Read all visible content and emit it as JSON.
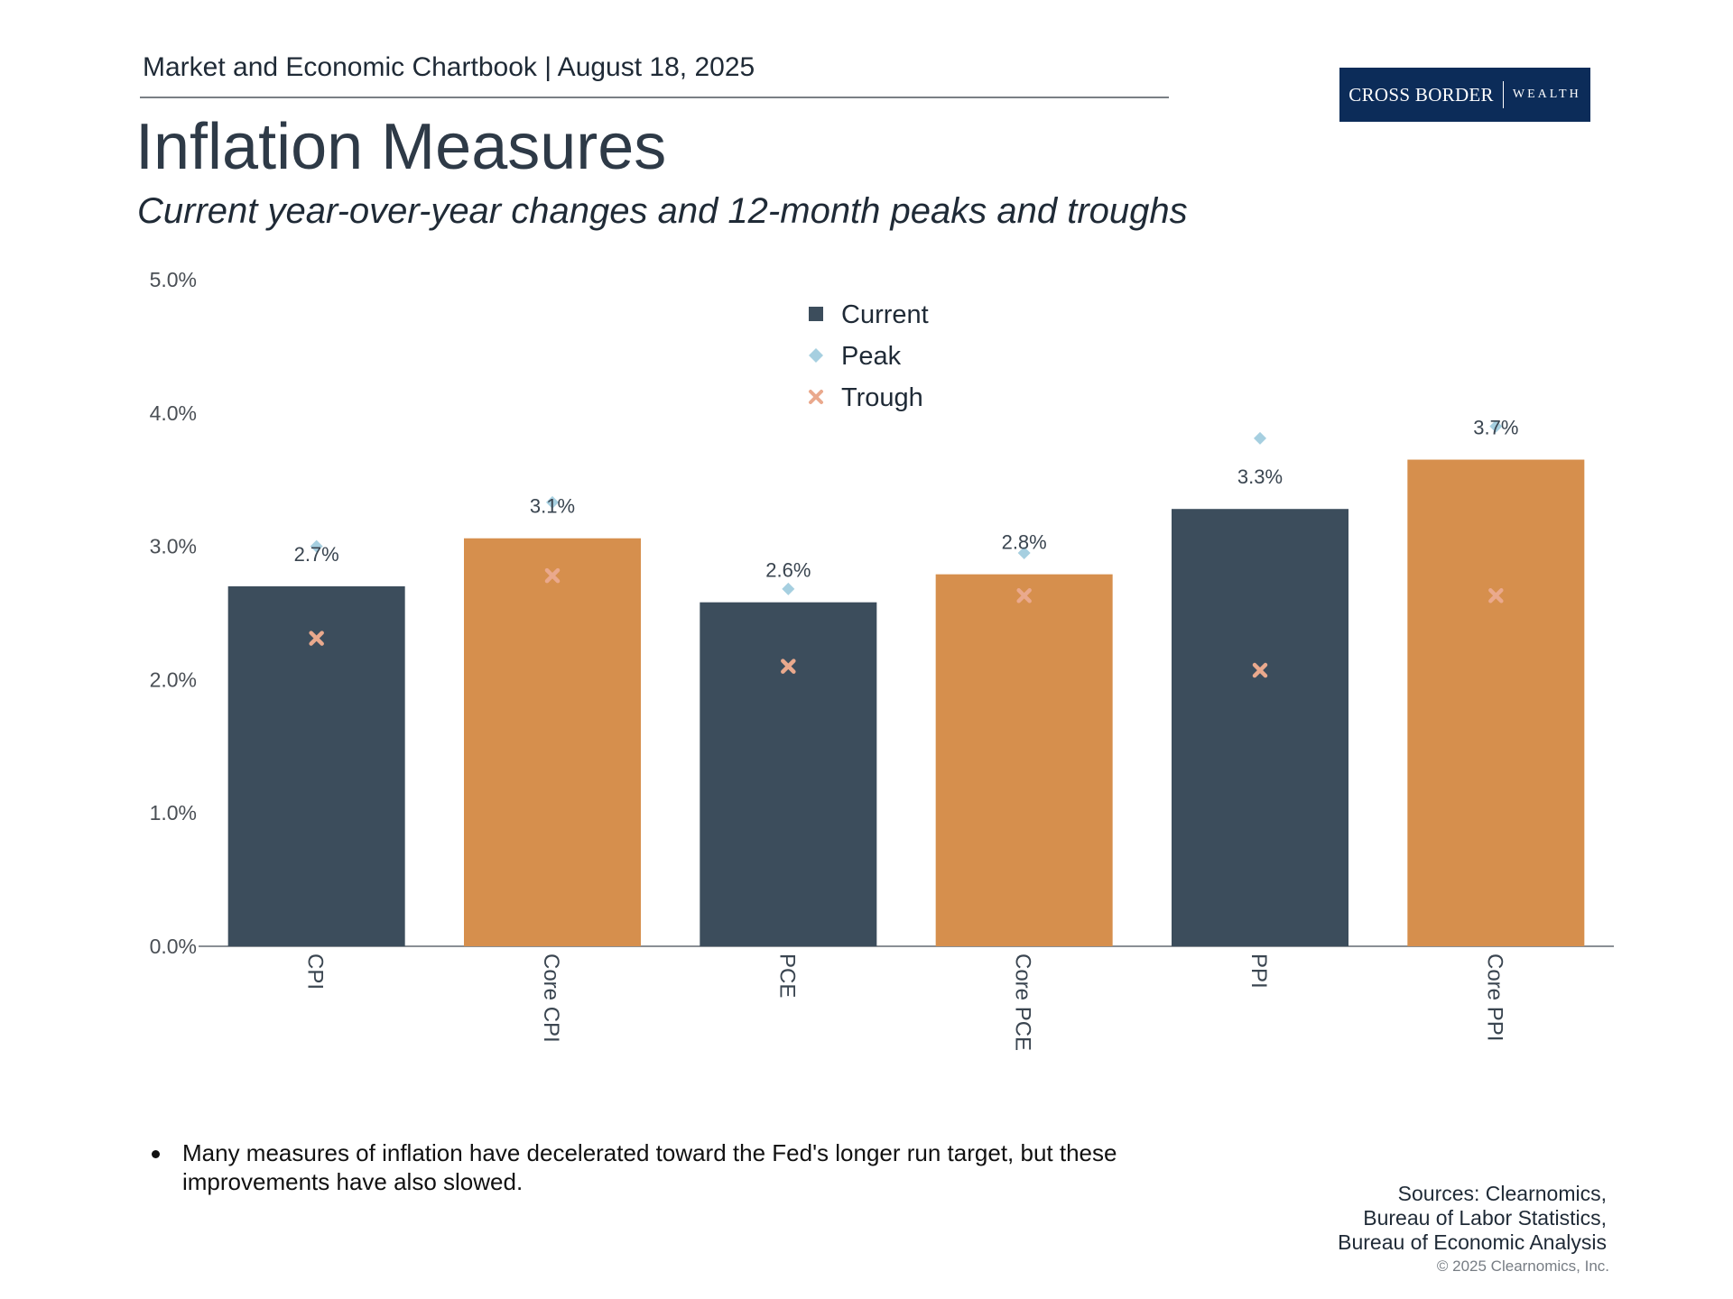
{
  "header": {
    "chartbook_line": "Market and Economic Chartbook | August 18, 2025",
    "logo_left": "CROSS BORDER",
    "logo_right": "WEALTH",
    "logo_color": "#0c2c59"
  },
  "title": "Inflation Measures",
  "subtitle": "Current year-over-year changes and 12-month peaks and troughs",
  "chart_data": {
    "type": "bar",
    "categories": [
      "CPI",
      "Core CPI",
      "PCE",
      "Core PCE",
      "PPI",
      "Core PPI"
    ],
    "series": [
      {
        "name": "Current",
        "values": [
          2.7,
          3.06,
          2.58,
          2.79,
          3.28,
          3.65
        ],
        "labels": [
          "2.7%",
          "3.1%",
          "2.6%",
          "2.8%",
          "3.3%",
          "3.7%"
        ]
      },
      {
        "name": "Peak",
        "values": [
          3.0,
          3.33,
          2.68,
          2.95,
          3.81,
          3.9
        ]
      },
      {
        "name": "Trough",
        "values": [
          2.31,
          2.78,
          2.1,
          2.63,
          2.07,
          2.63
        ]
      }
    ],
    "bar_colors": [
      "#3c4d5c",
      "#d68f4d",
      "#3c4d5c",
      "#d68f4d",
      "#3c4d5c",
      "#d68f4d"
    ],
    "peak_color": "#a6cfe0",
    "trough_color": "#eaa98d",
    "legend_current_color": "#3c4d5c",
    "yticks": [
      "0.0%",
      "1.0%",
      "2.0%",
      "3.0%",
      "4.0%",
      "5.0%"
    ],
    "ylim": [
      0,
      5
    ],
    "legend_position": "top-center"
  },
  "notes": {
    "bullet": "Many measures of inflation have decelerated toward the Fed's longer run target, but these improvements have also slowed."
  },
  "sources": {
    "line1": "Sources: Clearnomics,",
    "line2": "Bureau of Labor Statistics,",
    "line3": "Bureau of Economic Analysis"
  },
  "copyright": "© 2025 Clearnomics, Inc."
}
